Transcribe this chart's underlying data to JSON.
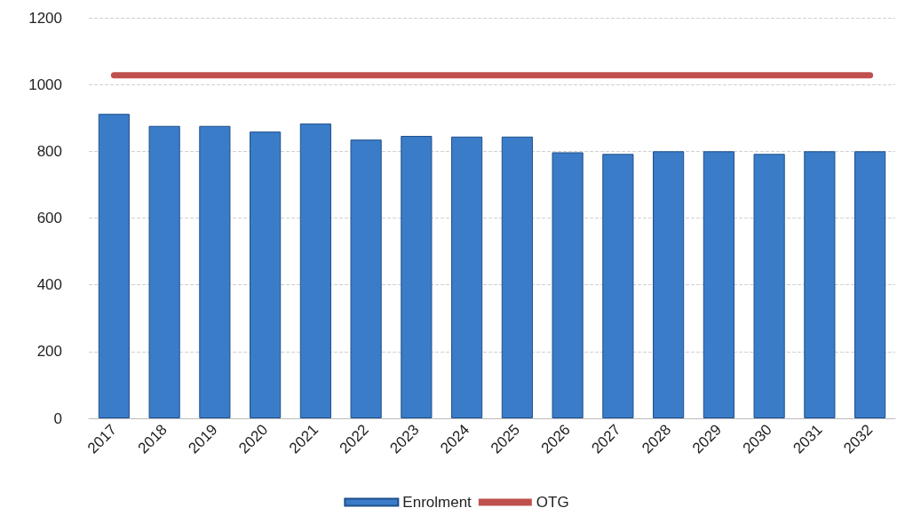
{
  "chart_data": {
    "type": "bar",
    "categories": [
      "2017",
      "2018",
      "2019",
      "2020",
      "2021",
      "2022",
      "2023",
      "2024",
      "2025",
      "2026",
      "2027",
      "2028",
      "2029",
      "2030",
      "2031",
      "2032"
    ],
    "series": [
      {
        "name": "Enrolment",
        "color": "#3a7cc8",
        "values": [
          912,
          876,
          876,
          859,
          883,
          835,
          846,
          844,
          844,
          797,
          792,
          800,
          800,
          792,
          800,
          800
        ]
      },
      {
        "name": "OTG",
        "type": "line",
        "color": "#c0504d",
        "values": [
          1028,
          1028,
          1028,
          1028,
          1028,
          1028,
          1028,
          1028,
          1028,
          1028,
          1028,
          1028,
          1028,
          1028,
          1028,
          1028
        ]
      }
    ],
    "ylim": [
      0,
      1200
    ],
    "yticks": [
      0,
      200,
      400,
      600,
      800,
      1000,
      1200
    ],
    "grid": "y",
    "legend": "bottom",
    "marker": "none"
  }
}
